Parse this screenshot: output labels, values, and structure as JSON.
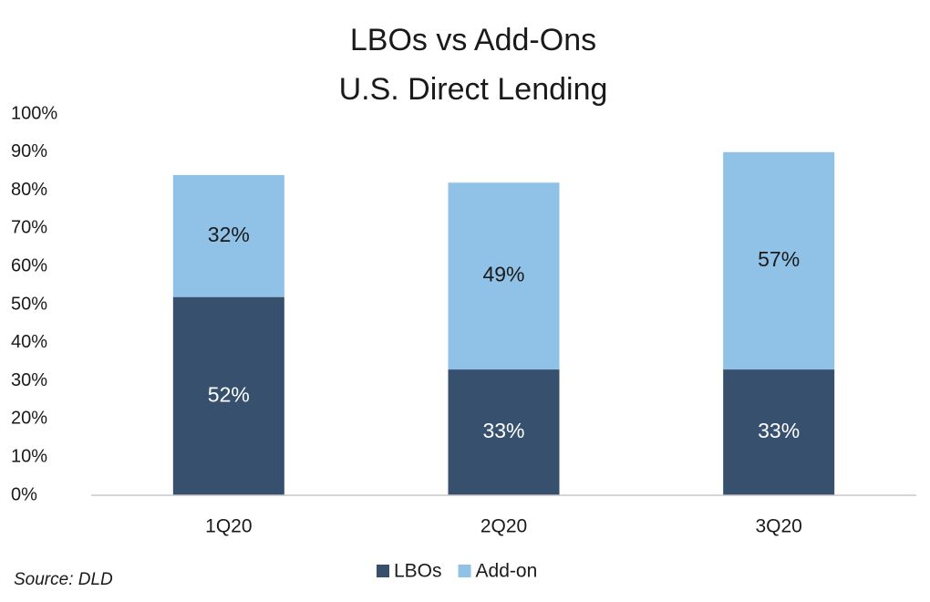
{
  "chart_data": {
    "type": "stacked_bar",
    "title": [
      "LBOs vs Add-Ons",
      "U.S. Direct Lending"
    ],
    "categories": [
      "1Q20",
      "2Q20",
      "3Q20"
    ],
    "series": [
      {
        "name": "LBOs",
        "color": "#36506e",
        "values": [
          52,
          33,
          33
        ],
        "value_labels": [
          "52%",
          "33%",
          "33%"
        ]
      },
      {
        "name": "Add-on",
        "color": "#90c1e6",
        "values": [
          32,
          49,
          57
        ],
        "value_labels": [
          "32%",
          "49%",
          "57%"
        ]
      }
    ],
    "ylim": [
      0,
      100
    ],
    "yticks": [
      {
        "value": 0,
        "label": "0%"
      },
      {
        "value": 10,
        "label": "10%"
      },
      {
        "value": 20,
        "label": "20%"
      },
      {
        "value": 30,
        "label": "30%"
      },
      {
        "value": 40,
        "label": "40%"
      },
      {
        "value": 50,
        "label": "50%"
      },
      {
        "value": 60,
        "label": "60%"
      },
      {
        "value": 70,
        "label": "70%"
      },
      {
        "value": 80,
        "label": "80%"
      },
      {
        "value": 90,
        "label": "90%"
      },
      {
        "value": 100,
        "label": "100%"
      }
    ],
    "grid": false,
    "legend": "bottom",
    "source": "Source: DLD"
  }
}
